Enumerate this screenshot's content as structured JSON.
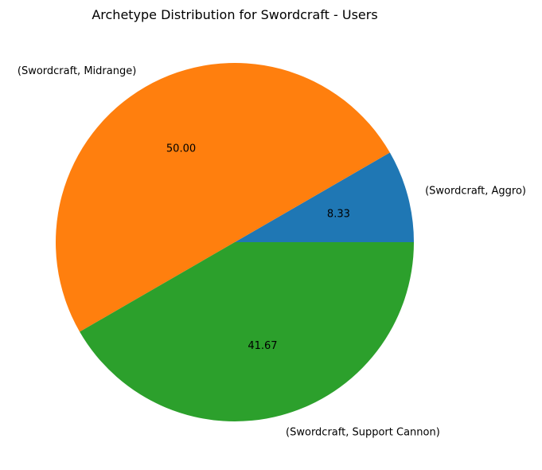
{
  "chart_data": {
    "type": "pie",
    "title": "Archetype Distribution for Swordcraft - Users",
    "slices": [
      {
        "label": "(Swordcraft, Aggro)",
        "value": 8.33,
        "pct_label": "8.33",
        "color": "#1f77b4"
      },
      {
        "label": "(Swordcraft, Midrange)",
        "value": 50.0,
        "pct_label": "50.00",
        "color": "#ff7f0e"
      },
      {
        "label": "(Swordcraft, Support Cannon)",
        "value": 41.67,
        "pct_label": "41.67",
        "color": "#2ca02c"
      }
    ],
    "start_angle": 0,
    "direction": "counterclockwise"
  }
}
